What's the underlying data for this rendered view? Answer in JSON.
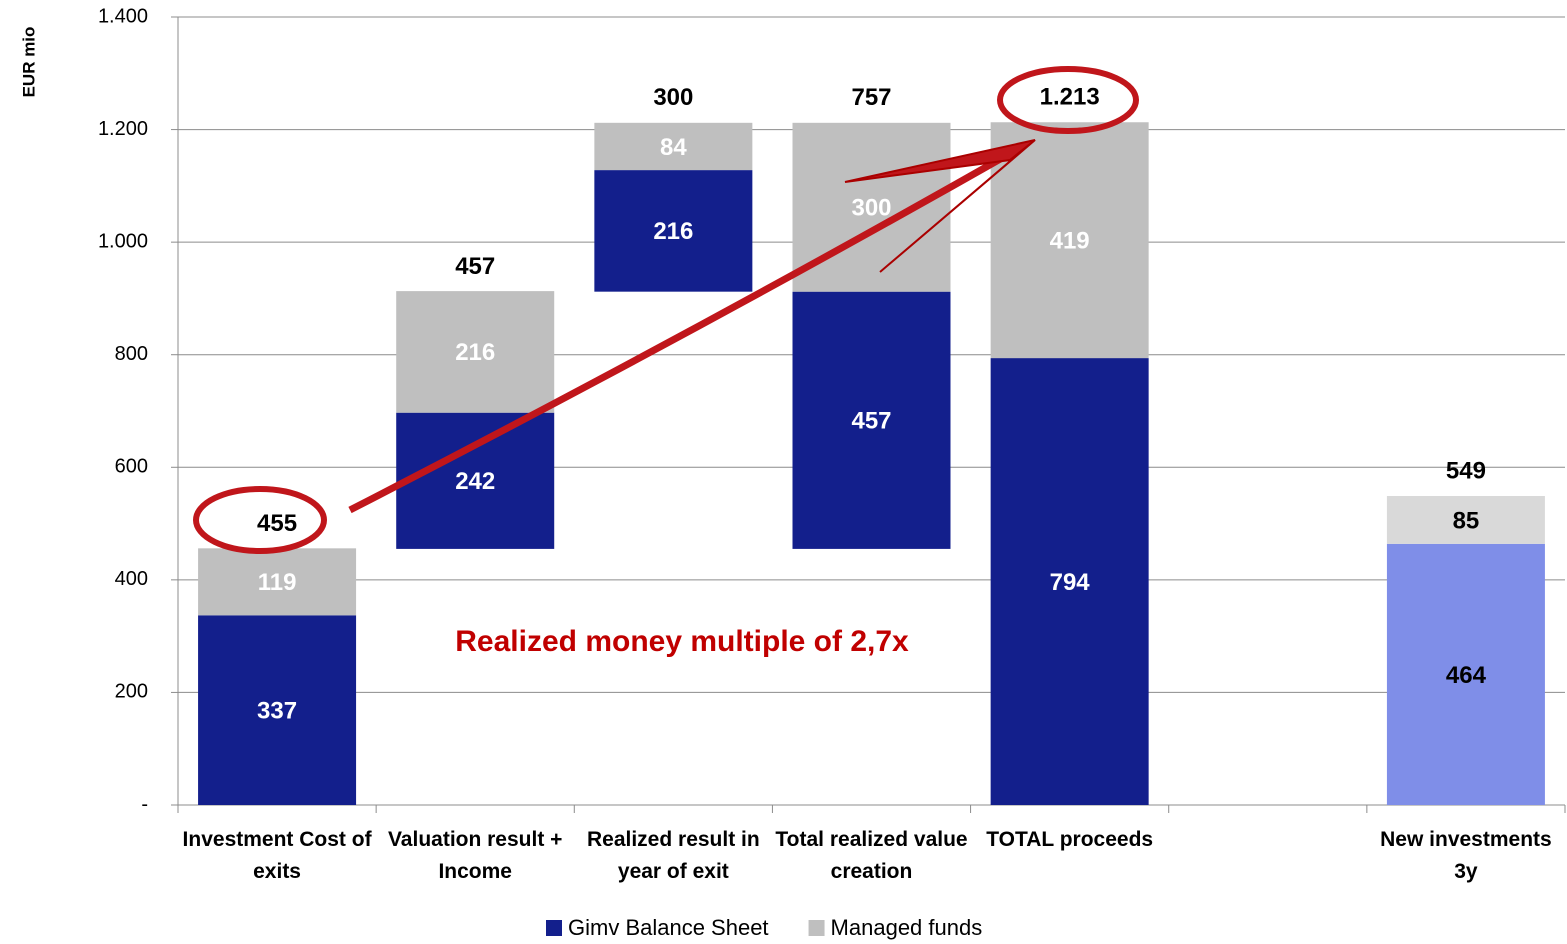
{
  "chart_data": {
    "type": "bar",
    "y_label": "EUR mio",
    "categories": [
      "Investment Cost of exits",
      "Valuation result + Income",
      "Realized result in year of exit",
      "Total realized value creation",
      "TOTAL proceeds",
      null,
      "New investments 3y"
    ],
    "series": [
      {
        "name": "Gimv Balance Sheet",
        "color": "#131f8c",
        "colors": [
          "#131f8c",
          "#131f8c",
          "#131f8c",
          "#131f8c",
          "#131f8c",
          null,
          "#7f8ee8"
        ],
        "values": [
          337,
          242,
          216,
          457,
          794,
          null,
          464
        ]
      },
      {
        "name": "Managed funds",
        "color": "#bfbfbf",
        "colors": [
          "#bfbfbf",
          "#bfbfbf",
          "#bfbfbf",
          "#bfbfbf",
          "#bfbfbf",
          null,
          "#d9d9d9"
        ],
        "values": [
          119,
          216,
          84,
          300,
          419,
          null,
          85
        ]
      }
    ],
    "totals": {
      "values": [
        455,
        457,
        300,
        757,
        1213,
        null,
        549
      ],
      "value_labels": [
        "455",
        "457",
        "300",
        "757",
        "1.213",
        null,
        "549"
      ]
    },
    "annotation": "Realized money multiple of 2,7x",
    "ylim": [
      0,
      1400
    ],
    "yticks": [
      {
        "value": 0,
        "label": "-"
      },
      200,
      400,
      600,
      800,
      {
        "value": 1000,
        "label": "1.000"
      },
      {
        "value": 1200,
        "label": "1.200"
      },
      {
        "value": 1400,
        "label": "1.400"
      }
    ],
    "grid": true,
    "legend": "bottom"
  }
}
